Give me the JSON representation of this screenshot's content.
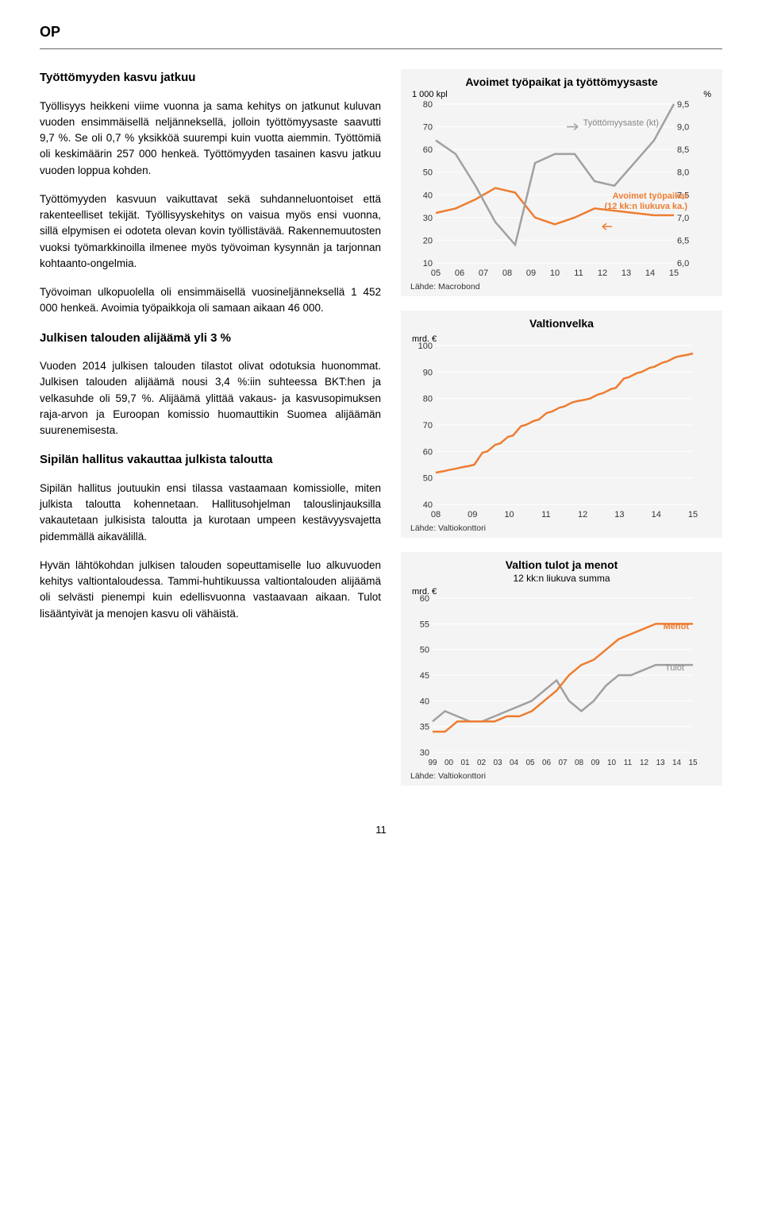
{
  "header": {
    "logo": "OP"
  },
  "left": {
    "h1": "Työttömyyden kasvu jatkuu",
    "p1": "Työllisyys heikkeni viime vuonna ja sama kehitys on jatkunut kuluvan vuoden ensimmäisellä neljänneksellä, jolloin työttömyysaste saavutti 9,7 %. Se oli 0,7 % yksikköä suurempi kuin vuotta aiemmin. Työttömiä oli keskimäärin 257 000 henkeä. Työttömyyden tasainen kasvu jatkuu vuoden loppua kohden.",
    "p2": "Työttömyyden kasvuun vaikuttavat sekä suhdanneluontoiset että rakenteelliset tekijät. Työllisyyskehitys on vaisua myös ensi vuonna, sillä elpymisen ei odoteta olevan kovin työllistävää. Rakennemuutosten vuoksi työmarkkinoilla ilmenee myös työvoiman kysynnän ja tarjonnan kohtaanto-ongelmia.",
    "p3": "Työvoiman ulkopuolella oli ensimmäisellä vuosineljänneksellä 1 452 000 henkeä. Avoimia työpaikkoja oli samaan aikaan 46 000.",
    "h2": "Julkisen talouden alijäämä yli 3 %",
    "p4": "Vuoden 2014 julkisen talouden tilastot olivat odotuksia huonommat. Julkisen talouden alijäämä nousi 3,4 %:iin suhteessa BKT:hen ja velkasuhde oli 59,7 %. Alijäämä ylittää vakaus- ja kasvusopimuksen raja-arvon ja Euroopan komissio huomauttikin Suomea alijäämän suurenemisesta.",
    "h3": "Sipilän hallitus vakauttaa julkista taloutta",
    "p5": "Sipilän hallitus joutuukin ensi tilassa vastaamaan komissiolle, miten julkista taloutta kohennetaan. Hallitusohjelman talouslinjauksilla vakautetaan julkisista taloutta ja kurotaan umpeen kestävyysvajetta pidemmällä aikavälillä.",
    "p6": "Hyvän lähtökohdan julkisen talouden sopeuttamiselle luo alkuvuoden kehitys valtiontaloudessa. Tammi-huhtikuussa valtiontalouden alijäämä oli selvästi pienempi kuin edellisvuonna vastaavaan aikaan. Tulot lisääntyivät ja menojen kasvu oli vähäistä."
  },
  "chart1": {
    "title": "Avoimet työpaikat ja työttömyysaste",
    "left_unit": "1 000 kpl",
    "right_unit": "%",
    "annot1": "Työttömyysaste (kt)",
    "annot2": "Avoimet työpaikat",
    "annot3": "(12 kk:n liukuva ka.)",
    "x_ticks": [
      "05",
      "06",
      "07",
      "08",
      "09",
      "10",
      "11",
      "12",
      "13",
      "14",
      "15"
    ],
    "left_ticks": [
      80,
      70,
      60,
      50,
      40,
      30,
      20,
      10
    ],
    "right_ticks": [
      "9,5",
      "9,0",
      "8,5",
      "8,0",
      "7,5",
      "7,0",
      "6,5",
      "6,0"
    ],
    "series_gray": {
      "color": "#a0a0a0",
      "points": [
        8.7,
        8.4,
        7.7,
        6.9,
        6.4,
        8.2,
        8.4,
        8.4,
        7.8,
        7.7,
        8.2,
        8.7,
        9.5
      ]
    },
    "series_orange": {
      "color": "#ed7d31",
      "points": [
        32,
        34,
        38,
        43,
        41,
        30,
        27,
        30,
        34,
        33,
        32,
        31,
        31
      ]
    },
    "source": "Lähde: Macrobond",
    "bg": "#f4f4f4"
  },
  "chart2": {
    "title": "Valtionvelka",
    "left_unit": "mrd. €",
    "x_ticks": [
      "08",
      "09",
      "10",
      "11",
      "12",
      "13",
      "14",
      "15"
    ],
    "y_ticks": [
      100,
      90,
      80,
      70,
      60,
      50,
      40
    ],
    "series": {
      "color": "#ed7d31",
      "points": [
        52,
        53,
        54,
        55,
        60,
        63,
        66,
        70,
        72,
        75,
        77,
        79,
        80,
        82,
        84,
        88,
        90,
        92,
        94,
        96,
        97
      ]
    },
    "source": "Lähde: Valtiokonttori",
    "bg": "#f4f4f4"
  },
  "chart3": {
    "title": "Valtion tulot ja menot",
    "subtitle": "12 kk:n liukuva summa",
    "left_unit": "mrd. €",
    "x_ticks": [
      "99",
      "00",
      "01",
      "02",
      "03",
      "04",
      "05",
      "06",
      "07",
      "08",
      "09",
      "10",
      "11",
      "12",
      "13",
      "14",
      "15"
    ],
    "y_ticks": [
      60,
      55,
      50,
      45,
      40,
      35,
      30
    ],
    "annot_menot": "Menot",
    "annot_tulot": "Tulot",
    "series_orange": {
      "color": "#ed7d31",
      "points": [
        34,
        34,
        36,
        36,
        36,
        36,
        37,
        37,
        38,
        40,
        42,
        45,
        47,
        48,
        50,
        52,
        53,
        54,
        55,
        55,
        55,
        55
      ]
    },
    "series_gray": {
      "color": "#a0a0a0",
      "points": [
        36,
        38,
        37,
        36,
        36,
        37,
        38,
        39,
        40,
        42,
        44,
        40,
        38,
        40,
        43,
        45,
        45,
        46,
        47,
        47,
        47,
        47
      ]
    },
    "source": "Lähde: Valtiokonttori",
    "bg": "#f4f4f4"
  },
  "page_number": "11"
}
